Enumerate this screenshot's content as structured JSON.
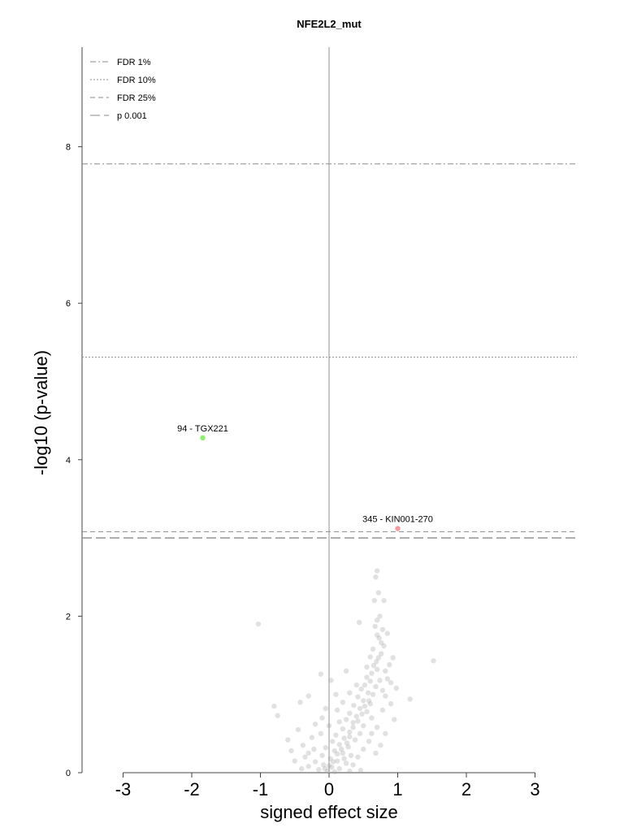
{
  "chart_data": {
    "type": "scatter",
    "title": "NFE2L2_mut",
    "xlabel": "signed effect size",
    "ylabel": "-log10 (p-value)",
    "xlim": [
      -3.6,
      3.6
    ],
    "ylim": [
      0,
      9.2
    ],
    "xticks": [
      -3,
      -2,
      -1,
      0,
      1,
      2,
      3
    ],
    "yticks": [
      0,
      2,
      4,
      6,
      8
    ],
    "grid": false,
    "legend_position": "top-left",
    "thresholds": [
      {
        "name": "FDR 1%",
        "y": 7.78,
        "style": "dashdot"
      },
      {
        "name": "FDR 10%",
        "y": 5.31,
        "style": "dotted"
      },
      {
        "name": "FDR 25%",
        "y": 3.08,
        "style": "dashed"
      },
      {
        "name": "p 0.001",
        "y": 3.0,
        "style": "longdash"
      }
    ],
    "highlighted": [
      {
        "label": "94 - TGX221",
        "x": -1.84,
        "y": 4.28,
        "color": "#90EE70"
      },
      {
        "label": "345 - KIN001-270",
        "x": 1.0,
        "y": 3.12,
        "color": "#F49AA0"
      }
    ],
    "points": [
      [
        0.7,
        2.58
      ],
      [
        0.68,
        2.5
      ],
      [
        0.72,
        2.3
      ],
      [
        0.66,
        2.2
      ],
      [
        0.8,
        2.2
      ],
      [
        0.44,
        1.92
      ],
      [
        0.67,
        1.87
      ],
      [
        0.78,
        1.83
      ],
      [
        0.85,
        1.78
      ],
      [
        0.7,
        1.76
      ],
      [
        -1.03,
        1.9
      ],
      [
        1.52,
        1.43
      ],
      [
        0.73,
        1.72
      ],
      [
        0.8,
        1.62
      ],
      [
        0.76,
        1.52
      ],
      [
        0.72,
        1.47
      ],
      [
        0.69,
        1.42
      ],
      [
        0.65,
        1.37
      ],
      [
        0.7,
        1.32
      ],
      [
        0.62,
        1.27
      ],
      [
        0.55,
        1.22
      ],
      [
        0.6,
        1.17
      ],
      [
        0.52,
        1.12
      ],
      [
        0.47,
        1.07
      ],
      [
        0.57,
        1.02
      ],
      [
        0.42,
        0.97
      ],
      [
        0.5,
        0.92
      ],
      [
        0.6,
        0.88
      ],
      [
        0.36,
        0.86
      ],
      [
        0.45,
        0.82
      ],
      [
        0.55,
        0.78
      ],
      [
        0.3,
        0.76
      ],
      [
        0.4,
        0.72
      ],
      [
        0.62,
        0.7
      ],
      [
        0.25,
        0.68
      ],
      [
        0.35,
        0.64
      ],
      [
        0.5,
        0.6
      ],
      [
        0.2,
        0.56
      ],
      [
        0.3,
        0.52
      ],
      [
        0.45,
        0.5
      ],
      [
        0.1,
        0.48
      ],
      [
        0.22,
        0.44
      ],
      [
        0.38,
        0.42
      ],
      [
        0.05,
        0.4
      ],
      [
        0.15,
        0.36
      ],
      [
        0.28,
        0.33
      ],
      [
        -0.05,
        0.32
      ],
      [
        0.08,
        0.28
      ],
      [
        0.2,
        0.25
      ],
      [
        0.32,
        0.22
      ],
      [
        -0.1,
        0.22
      ],
      [
        0.02,
        0.18
      ],
      [
        0.12,
        0.15
      ],
      [
        0.25,
        0.12
      ],
      [
        -0.2,
        0.14
      ],
      [
        -0.08,
        0.1
      ],
      [
        0.04,
        0.07
      ],
      [
        0.15,
        0.05
      ],
      [
        -0.3,
        0.08
      ],
      [
        -0.15,
        0.04
      ],
      [
        -0.02,
        0.02
      ],
      [
        0.08,
        0.01
      ],
      [
        -0.38,
        0.35
      ],
      [
        -0.25,
        0.45
      ],
      [
        -0.45,
        0.55
      ],
      [
        -0.3,
        0.25
      ],
      [
        -0.5,
        0.15
      ],
      [
        -0.4,
        0.05
      ],
      [
        0.0,
        0.6
      ],
      [
        -0.12,
        0.5
      ],
      [
        -0.12,
        1.26
      ],
      [
        0.25,
        1.3
      ],
      [
        -0.75,
        0.73
      ],
      [
        -0.8,
        0.85
      ],
      [
        -0.42,
        0.9
      ],
      [
        -0.3,
        0.98
      ],
      [
        1.18,
        0.94
      ],
      [
        0.95,
        0.68
      ],
      [
        0.9,
        0.88
      ],
      [
        0.98,
        1.08
      ],
      [
        0.85,
        1.2
      ],
      [
        0.78,
        1.05
      ],
      [
        0.93,
        1.47
      ],
      [
        0.88,
        1.38
      ],
      [
        0.82,
        1.3
      ],
      [
        0.74,
        1.18
      ],
      [
        0.68,
        1.1
      ],
      [
        0.64,
        1.0
      ],
      [
        0.58,
        0.92
      ],
      [
        0.52,
        0.85
      ],
      [
        0.48,
        0.75
      ],
      [
        0.42,
        0.66
      ],
      [
        0.35,
        0.58
      ],
      [
        0.3,
        0.46
      ],
      [
        0.26,
        0.38
      ],
      [
        0.18,
        0.3
      ],
      [
        0.12,
        0.24
      ],
      [
        0.06,
        0.14
      ],
      [
        0.0,
        0.09
      ],
      [
        -0.06,
        0.05
      ],
      [
        0.3,
        1.02
      ],
      [
        0.4,
        1.12
      ],
      [
        0.55,
        1.35
      ],
      [
        0.64,
        1.58
      ],
      [
        0.76,
        1.66
      ],
      [
        0.62,
        0.5
      ],
      [
        0.7,
        0.58
      ],
      [
        0.78,
        0.8
      ],
      [
        0.82,
        0.98
      ],
      [
        0.9,
        1.15
      ],
      [
        -0.2,
        0.62
      ],
      [
        -0.1,
        0.7
      ],
      [
        0.12,
        0.8
      ],
      [
        0.2,
        0.9
      ],
      [
        0.15,
        0.65
      ],
      [
        0.22,
        0.18
      ],
      [
        0.35,
        0.1
      ],
      [
        0.42,
        0.2
      ],
      [
        0.5,
        0.3
      ],
      [
        0.58,
        0.4
      ],
      [
        0.68,
        0.25
      ],
      [
        0.75,
        0.35
      ],
      [
        0.82,
        0.5
      ],
      [
        0.46,
        0.03
      ],
      [
        0.3,
        0.02
      ],
      [
        -0.22,
        0.3
      ],
      [
        -0.35,
        0.2
      ],
      [
        -0.55,
        0.28
      ],
      [
        -0.6,
        0.42
      ],
      [
        -0.05,
        0.82
      ],
      [
        0.1,
        1.0
      ],
      [
        0.03,
        1.18
      ],
      [
        0.6,
        1.48
      ],
      [
        0.7,
        1.95
      ],
      [
        0.74,
        2.0
      ]
    ]
  }
}
